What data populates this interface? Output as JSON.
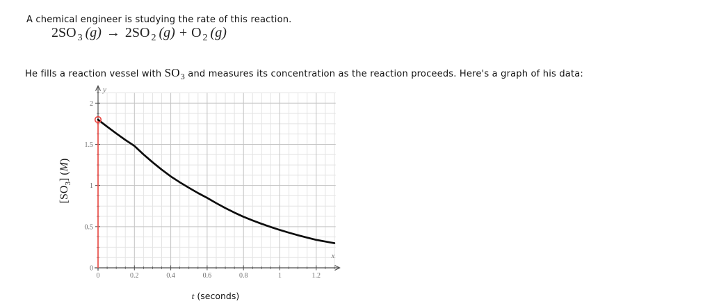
{
  "intro": {
    "text": "A chemical engineer is studying the rate of this reaction."
  },
  "equation": {
    "segments": [
      {
        "style": "base",
        "text": "2SO"
      },
      {
        "style": "sub",
        "text": "3"
      },
      {
        "style": "ital",
        "text": "(g)"
      },
      {
        "style": "arrow",
        "text": "→"
      },
      {
        "style": "base",
        "text": "2SO"
      },
      {
        "style": "sub",
        "text": "2"
      },
      {
        "style": "ital",
        "text": "(g)"
      },
      {
        "style": "plus",
        "text": "+"
      },
      {
        "style": "base",
        "text": "O"
      },
      {
        "style": "sub",
        "text": "2"
      },
      {
        "style": "ital",
        "text": "(g)"
      }
    ]
  },
  "description": {
    "segments": [
      {
        "style": "sans",
        "text": "He fills a reaction vessel with "
      },
      {
        "style": "formula",
        "text": "SO"
      },
      {
        "style": "formula-sub",
        "text": "3"
      },
      {
        "style": "sans",
        "text": " and measures its concentration as the reaction proceeds. Here's a graph of his data:"
      }
    ]
  },
  "chart_data": {
    "type": "line",
    "title": "",
    "xlabel_italic": "t",
    "xlabel_rest": " (seconds)",
    "ylabel_segments": [
      {
        "style": "base",
        "text": "[SO"
      },
      {
        "style": "sub",
        "text": "3"
      },
      {
        "style": "base",
        "text": "] ("
      },
      {
        "style": "ital",
        "text": "M"
      },
      {
        "style": "base",
        "text": ")"
      }
    ],
    "axis_end_labels": {
      "x": "x",
      "y": "y"
    },
    "x": [
      0,
      0.2,
      0.4,
      0.6,
      0.8,
      1.0,
      1.2,
      1.3
    ],
    "y": [
      1.8,
      1.48,
      1.11,
      0.85,
      0.62,
      0.46,
      0.34,
      0.3
    ],
    "start_point": {
      "x": 0,
      "y": 1.8
    },
    "x_ticks": {
      "values": [
        0,
        0.2,
        0.4,
        0.6,
        0.8,
        1,
        1.2
      ],
      "labels": [
        "0",
        "0.2",
        "0.4",
        "0.6",
        "0.8",
        "1",
        "1.2"
      ]
    },
    "y_ticks": {
      "values": [
        0,
        0.5,
        1,
        1.5,
        2
      ],
      "labels": [
        "0",
        "0.5",
        "1",
        "1.5",
        "2"
      ]
    },
    "x_minor_step": 0.05,
    "y_minor_step": 0.125,
    "xlim": [
      0,
      1.31
    ],
    "ylim": [
      0,
      2.2
    ],
    "grid": "on",
    "legend": "none",
    "colors": {
      "curve": "#0d0d0d",
      "marker_red": "#e8423d",
      "red_line": "#ef5550",
      "grid_minor": "#e4e4e4",
      "grid_major": "#c3c3c3",
      "axis": "#4d4d4d",
      "tick_label": "#6e6e6e",
      "axis_end_label": "#777777",
      "ylabel_color": "#1a1a1a",
      "xlabel_color": "#111111"
    }
  }
}
